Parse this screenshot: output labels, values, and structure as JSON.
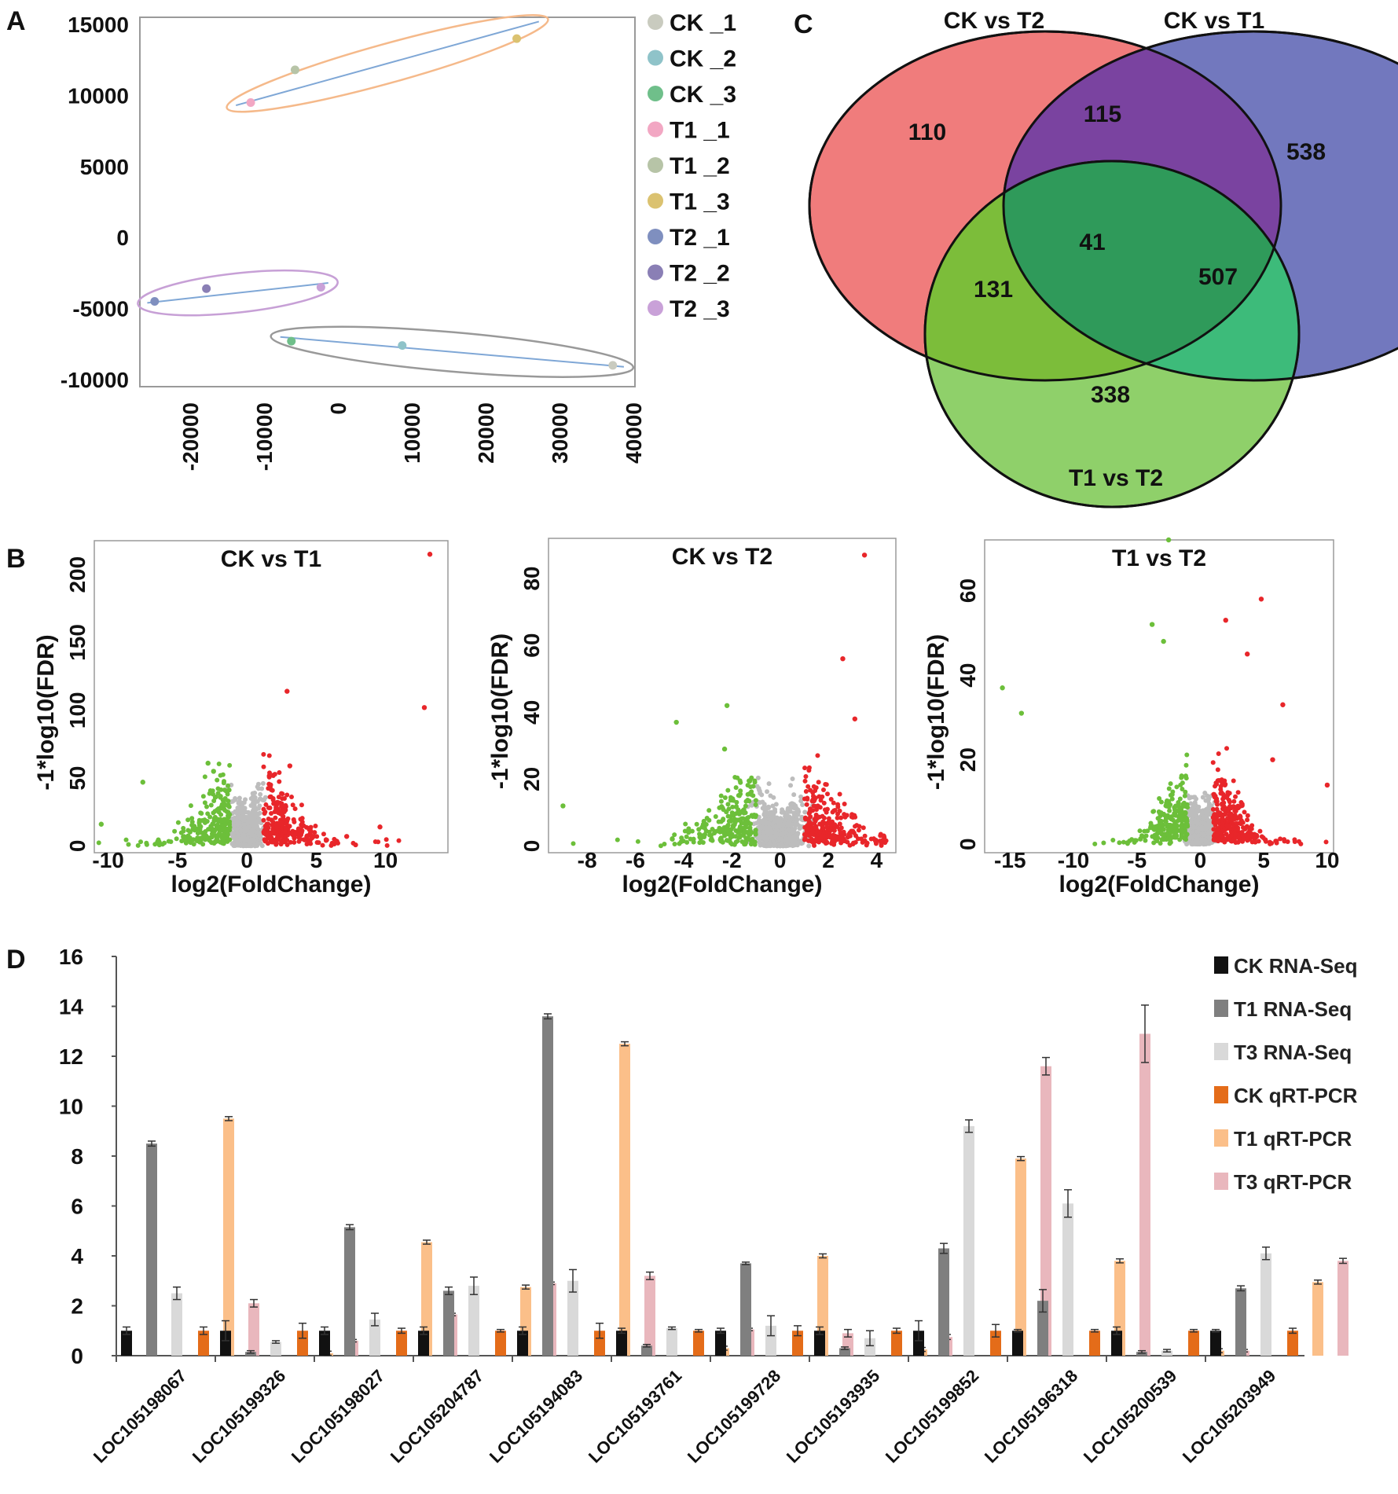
{
  "panels": {
    "a": "A",
    "b": "B",
    "c": "C",
    "d": "D"
  },
  "chart_data": [
    {
      "id": "A",
      "type": "scatter",
      "title": "",
      "xlabel": "",
      "ylabel": "",
      "xlim": [
        -27000,
        40000
      ],
      "ylim": [
        -10500,
        15500
      ],
      "x_ticks": [
        "-20000",
        "-10000",
        "0",
        "10000",
        "20000",
        "30000",
        "40000"
      ],
      "x_tick_values": [
        -20000,
        -10000,
        0,
        10000,
        20000,
        30000,
        40000
      ],
      "y_ticks": [
        "15000",
        "10000",
        "5000",
        "0",
        "-5000",
        "-10000"
      ],
      "y_tick_values": [
        15000,
        10000,
        5000,
        0,
        -5000,
        -10000
      ],
      "legend": [
        {
          "label": "CK  _1",
          "color": "#c9cbbf"
        },
        {
          "label": "CK  _2",
          "color": "#8fc3c9"
        },
        {
          "label": "CK  _3",
          "color": "#6fbf8a"
        },
        {
          "label": "T1  _1",
          "color": "#f2a7c3"
        },
        {
          "label": "T1  _2",
          "color": "#b7c4a7"
        },
        {
          "label": "T1  _3",
          "color": "#dbc270"
        },
        {
          "label": "T2  _1",
          "color": "#7f8fbf"
        },
        {
          "label": "T2  _2",
          "color": "#8a7fb5"
        },
        {
          "label": "T2  _3",
          "color": "#c9a1d8"
        }
      ],
      "points": [
        {
          "label": "CK _1",
          "x": 37000,
          "y": -9000,
          "color": "#c9cbbf"
        },
        {
          "label": "CK _2",
          "x": 8500,
          "y": -7600,
          "color": "#8fc3c9"
        },
        {
          "label": "CK _3",
          "x": -6500,
          "y": -7300,
          "color": "#6fbf8a"
        },
        {
          "label": "T1 _1",
          "x": -12000,
          "y": 9500,
          "color": "#f2a7c3"
        },
        {
          "label": "T1 _2",
          "x": -6000,
          "y": 11800,
          "color": "#b7c4a7"
        },
        {
          "label": "T1 _3",
          "x": 24000,
          "y": 14000,
          "color": "#dbc270"
        },
        {
          "label": "T2 _1",
          "x": -25000,
          "y": -4500,
          "color": "#7f8fbf"
        },
        {
          "label": "T2 _2",
          "x": -18000,
          "y": -3600,
          "color": "#8a7fb5"
        },
        {
          "label": "T2 _3",
          "x": -2500,
          "y": -3500,
          "color": "#c9a1d8"
        }
      ],
      "groups": [
        {
          "name": "T1",
          "line": [
            [
              -14000,
              9300
            ],
            [
              27000,
              15200
            ]
          ],
          "ellipse_color": "#f5b98a"
        },
        {
          "name": "T2",
          "line": [
            [
              -26000,
              -4600
            ],
            [
              -1500,
              -3200
            ]
          ],
          "ellipse_color": "#c7a0d6"
        },
        {
          "name": "CK",
          "line": [
            [
              -8000,
              -7000
            ],
            [
              38500,
              -9100
            ]
          ],
          "ellipse_color": "#999999"
        }
      ]
    },
    {
      "id": "B1",
      "type": "scatter",
      "title": "CK vs T1",
      "xlabel": "log2(FoldChange)",
      "ylabel": "-1*log10(FDR)",
      "xlim": [
        -11,
        14.5
      ],
      "ylim": [
        -5,
        225
      ],
      "x_ticks": [
        "-10",
        "-5",
        "0",
        "5",
        "10"
      ],
      "x_tick_values": [
        -10,
        -5,
        0,
        5,
        10
      ],
      "y_ticks": [
        "0",
        "50",
        "100",
        "150",
        "200"
      ],
      "y_tick_values": [
        0,
        50,
        100,
        150,
        200
      ],
      "highlight_points": [
        {
          "x": 13.2,
          "y": 215
        },
        {
          "x": 12.8,
          "y": 102
        },
        {
          "x": 2.9,
          "y": 114
        },
        {
          "x": 3.1,
          "y": 59
        },
        {
          "x": -2.8,
          "y": 61
        },
        {
          "x": -2.4,
          "y": 55
        },
        {
          "x": -7.5,
          "y": 47
        },
        {
          "x": -10.5,
          "y": 16
        },
        {
          "x": 9.6,
          "y": 14
        },
        {
          "x": 7.2,
          "y": 7
        }
      ]
    },
    {
      "id": "B2",
      "type": "scatter",
      "title": "CK vs T2",
      "xlabel": "log2(FoldChange)",
      "ylabel": "-1*log10(FDR)",
      "xlim": [
        -9.6,
        4.8
      ],
      "ylim": [
        -2,
        92
      ],
      "x_ticks": [
        "-8",
        "-6",
        "-4",
        "-2",
        "0",
        "2",
        "4"
      ],
      "x_tick_values": [
        -8,
        -6,
        -4,
        -2,
        0,
        2,
        4
      ],
      "y_ticks": [
        "0",
        "20",
        "40",
        "60",
        "80"
      ],
      "y_tick_values": [
        0,
        20,
        40,
        60,
        80
      ],
      "highlight_points": [
        {
          "x": 3.5,
          "y": 87
        },
        {
          "x": 2.6,
          "y": 56
        },
        {
          "x": 3.1,
          "y": 38
        },
        {
          "x": -2.2,
          "y": 42
        },
        {
          "x": -4.3,
          "y": 37
        },
        {
          "x": 4.3,
          "y": 3
        },
        {
          "x": -9.0,
          "y": 12
        },
        {
          "x": -2.3,
          "y": 29
        }
      ]
    },
    {
      "id": "B3",
      "type": "scatter",
      "title": "T1 vs T2",
      "xlabel": "log2(FoldChange)",
      "ylabel": "-1*log10(FDR)",
      "xlim": [
        -17,
        10.5
      ],
      "ylim": [
        -2,
        72
      ],
      "x_ticks": [
        "-15",
        "-10",
        "-5",
        "0",
        "5",
        "10"
      ],
      "x_tick_values": [
        -15,
        -10,
        -5,
        0,
        5,
        10
      ],
      "y_ticks": [
        "0",
        "20",
        "40",
        "60"
      ],
      "y_tick_values": [
        0,
        20,
        40,
        60
      ],
      "highlight_points": [
        {
          "x": -2.5,
          "y": 72
        },
        {
          "x": -3.8,
          "y": 52
        },
        {
          "x": -15.6,
          "y": 37
        },
        {
          "x": -14.1,
          "y": 31
        },
        {
          "x": 4.8,
          "y": 58
        },
        {
          "x": 2.0,
          "y": 53
        },
        {
          "x": 3.7,
          "y": 45
        },
        {
          "x": 6.5,
          "y": 33
        },
        {
          "x": 10.0,
          "y": 14
        },
        {
          "x": 5.7,
          "y": 20
        },
        {
          "x": -2.9,
          "y": 48
        }
      ]
    },
    {
      "id": "C",
      "type": "venn",
      "sets": [
        {
          "label": "CK vs T2",
          "color": "#f07c7c"
        },
        {
          "label": "CK vs T1",
          "color": "#6f75bd"
        },
        {
          "label": "T1 vs T2",
          "color": "#8fd06a"
        }
      ],
      "regions": [
        {
          "sets": [
            "CK vs T2"
          ],
          "value": "110"
        },
        {
          "sets": [
            "CK vs T2",
            "CK vs T1"
          ],
          "value": "115"
        },
        {
          "sets": [
            "CK vs T1"
          ],
          "value": "538"
        },
        {
          "sets": [
            "CK vs T2",
            "CK vs T1",
            "T1 vs T2"
          ],
          "value": "41"
        },
        {
          "sets": [
            "CK vs T2",
            "T1 vs T2"
          ],
          "value": "131"
        },
        {
          "sets": [
            "CK vs T1",
            "T1 vs T2"
          ],
          "value": "507"
        },
        {
          "sets": [
            "T1 vs T2"
          ],
          "value": "338"
        }
      ]
    },
    {
      "id": "D",
      "type": "bar",
      "title": "",
      "xlabel": "",
      "ylabel": "",
      "ylim": [
        0,
        16
      ],
      "y_ticks": [
        "0",
        "2",
        "4",
        "6",
        "8",
        "10",
        "12",
        "14",
        "16"
      ],
      "y_tick_values": [
        0,
        2,
        4,
        6,
        8,
        10,
        12,
        14,
        16
      ],
      "categories": [
        "LOC105198067",
        "LOC105199326",
        "LOC105198027",
        "LOC105204787",
        "LOC105194083",
        "LOC105193761",
        "LOC105199728",
        "LOC105193935",
        "LOC105199852",
        "LOC105196318",
        "LOC105200539",
        "LOC105203949"
      ],
      "series": [
        {
          "name": "CK RNA-Seq",
          "color": "#111111",
          "values": [
            1,
            1,
            1,
            1,
            1,
            1,
            1,
            1,
            1,
            1,
            1,
            1
          ],
          "errors": [
            0.15,
            0.4,
            0.15,
            0.15,
            0.15,
            0.1,
            0.1,
            0.15,
            0.4,
            0.05,
            0.15,
            0.05
          ]
        },
        {
          "name": "T1 RNA-Seq",
          "color": "#7f7f7f",
          "values": [
            8.5,
            0.15,
            5.15,
            2.6,
            13.6,
            0.4,
            3.7,
            0.3,
            4.3,
            2.2,
            0.15,
            2.7
          ],
          "errors": [
            0.1,
            0.05,
            0.1,
            0.15,
            0.1,
            0.05,
            0.05,
            0.05,
            0.2,
            0.45,
            0.05,
            0.1
          ]
        },
        {
          "name": "T3 RNA-Seq",
          "color": "#d9d9d9",
          "values": [
            2.5,
            0.55,
            1.45,
            2.8,
            3.0,
            1.1,
            1.2,
            0.7,
            9.2,
            6.1,
            0.2,
            4.1
          ],
          "errors": [
            0.25,
            0.05,
            0.25,
            0.35,
            0.45,
            0.05,
            0.4,
            0.3,
            0.25,
            0.55,
            0.05,
            0.25
          ]
        },
        {
          "name": "CK qRT-PCR",
          "color": "#e46c19",
          "values": [
            1,
            1,
            1,
            1,
            1,
            1,
            1,
            1,
            1,
            1,
            1,
            1
          ],
          "errors": [
            0.15,
            0.3,
            0.1,
            0.05,
            0.3,
            0.05,
            0.2,
            0.1,
            0.25,
            0.05,
            0.05,
            0.1
          ]
        },
        {
          "name": "T1 qRT-PCR",
          "color": "#fbbf89",
          "values": [
            9.5,
            0.1,
            4.55,
            2.75,
            12.5,
            0.3,
            4.0,
            0.25,
            7.9,
            3.8,
            0.2,
            2.95
          ]
        },
        {
          "name": "T3 qRT-PCR",
          "color": "#e9b7bd",
          "values": [
            2.1,
            0.6,
            1.65,
            2.9,
            3.2,
            1.05,
            0.9,
            0.75,
            11.6,
            12.9,
            0.2,
            3.8
          ],
          "errors": [
            0.15,
            0.05,
            0.05,
            0.05,
            0.15,
            0.05,
            0.15,
            0.1,
            0.35,
            1.15,
            0.05,
            0.1
          ]
        }
      ],
      "legend": [
        "CK RNA-Seq",
        "T1 RNA-Seq",
        "T3 RNA-Seq",
        "CK qRT-PCR",
        "T1 qRT-PCR",
        "T3 qRT-PCR"
      ]
    }
  ]
}
